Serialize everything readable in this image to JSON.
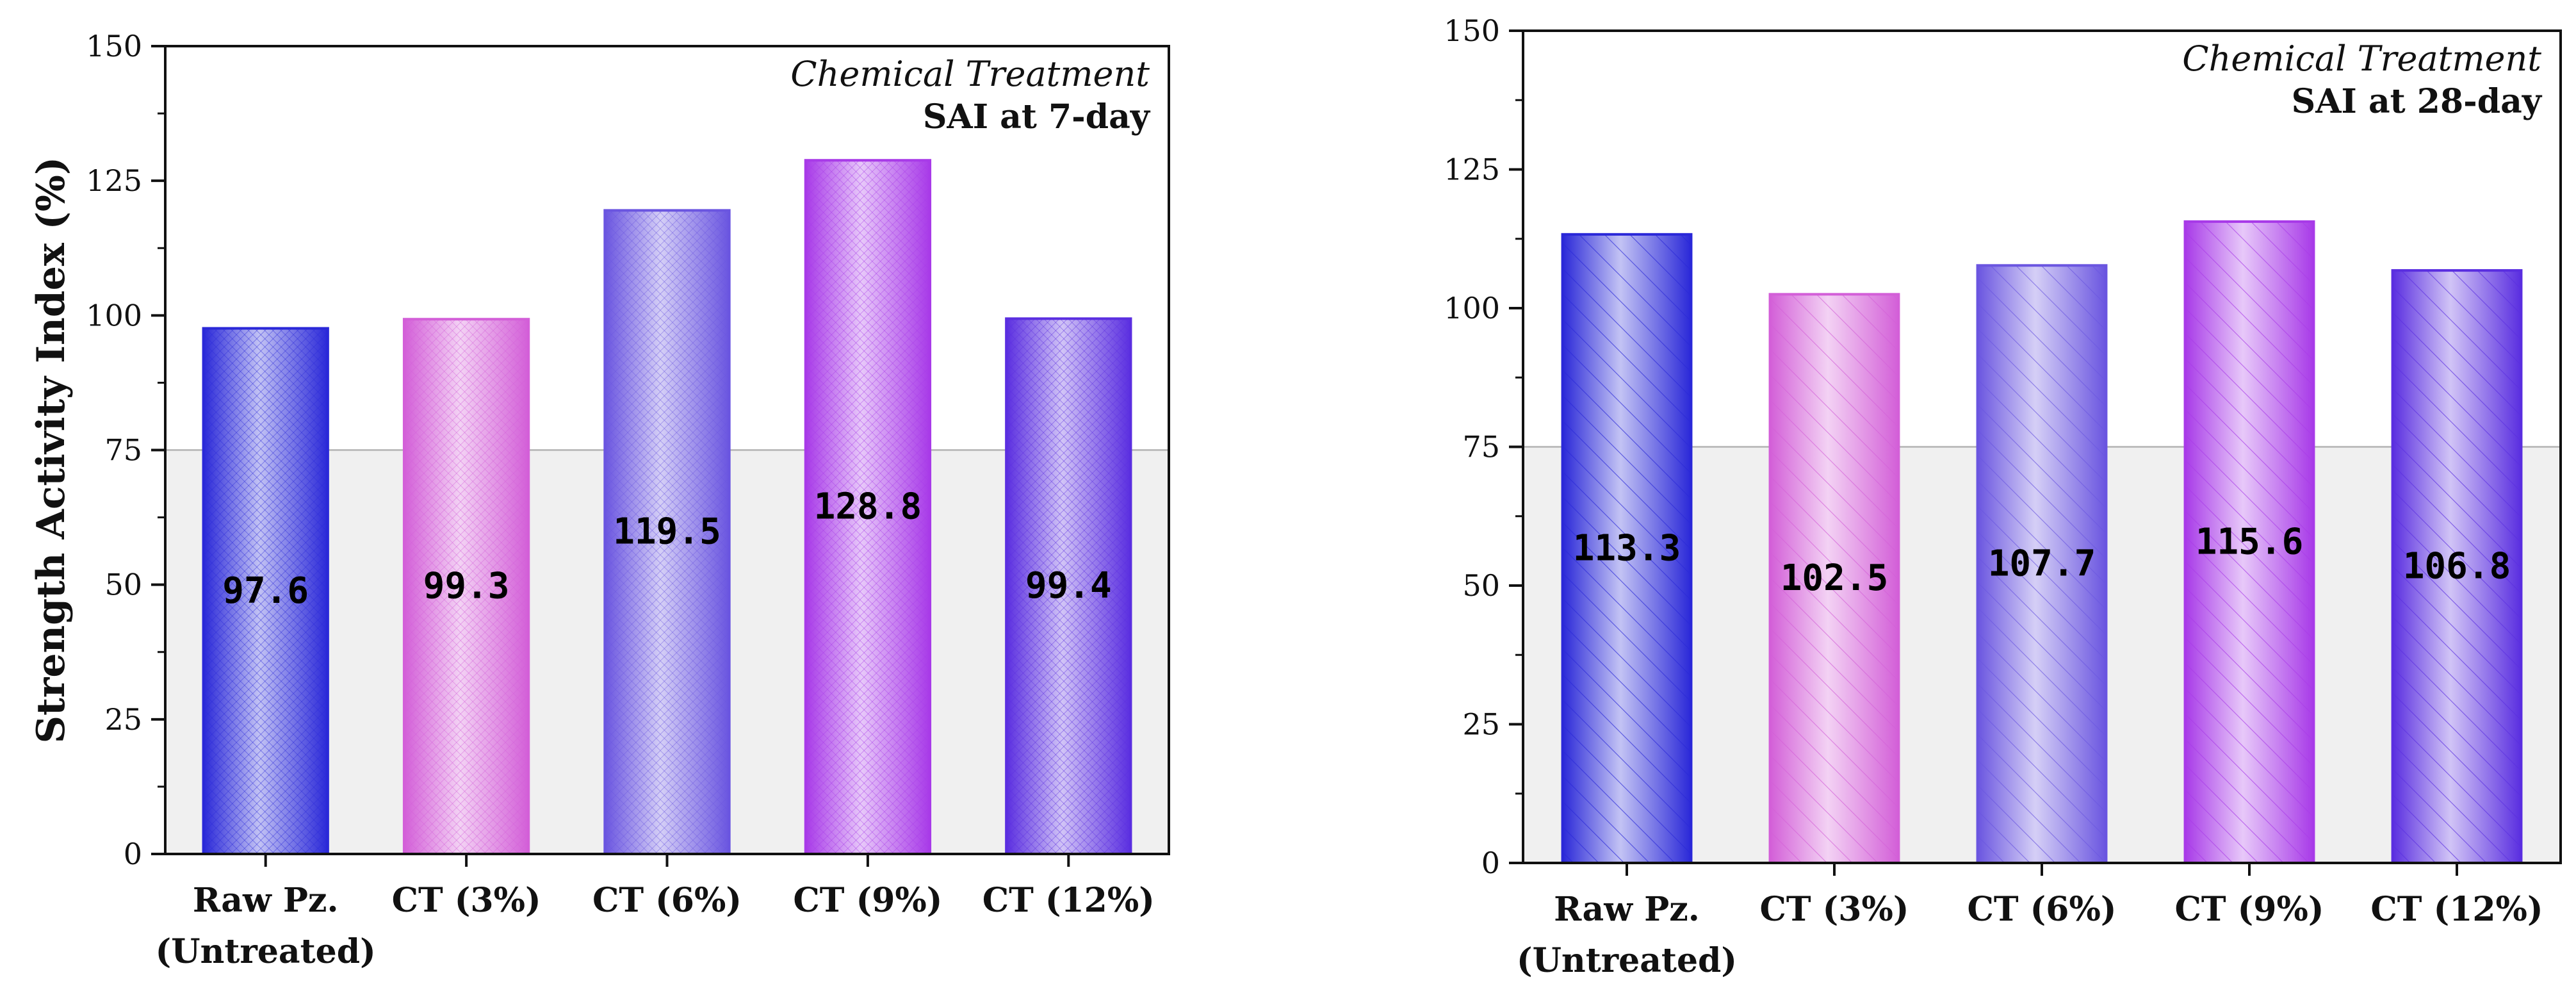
{
  "chart_data": [
    {
      "type": "bar",
      "title": "Chemical Treatment",
      "subtitle": "SAI at 7-day",
      "xlabel": "",
      "ylabel": "Strength Activity Index (%)",
      "ylim": [
        0,
        150
      ],
      "yticks": [
        0,
        25,
        50,
        75,
        100,
        125,
        150
      ],
      "reference_line": 75,
      "categories": [
        [
          "Raw Pz.",
          "(Untreated)"
        ],
        [
          "CT (3%)"
        ],
        [
          "CT (6%)"
        ],
        [
          "CT (9%)"
        ],
        [
          "CT (12%)"
        ]
      ],
      "values": [
        97.6,
        99.3,
        119.5,
        128.8,
        99.4
      ],
      "value_labels": [
        "97.6",
        "99.3",
        "119.5",
        "128.8",
        "99.4"
      ],
      "colors": [
        "#2a28d8",
        "#d35fd8",
        "#6a55e0",
        "#a83ae8",
        "#5a2ee0"
      ],
      "pattern": "crosshatch"
    },
    {
      "type": "bar",
      "title": "Chemical Treatment",
      "subtitle": "SAI at 28-day",
      "xlabel": "",
      "ylabel": "",
      "ylim": [
        0,
        150
      ],
      "yticks": [
        0,
        25,
        50,
        75,
        100,
        125,
        150
      ],
      "reference_line": 75,
      "categories": [
        [
          "Raw Pz.",
          "(Untreated)"
        ],
        [
          "CT (3%)"
        ],
        [
          "CT (6%)"
        ],
        [
          "CT (9%)"
        ],
        [
          "CT (12%)"
        ]
      ],
      "values": [
        113.3,
        102.5,
        107.7,
        115.6,
        106.8
      ],
      "value_labels": [
        "113.3",
        "102.5",
        "107.7",
        "115.6",
        "106.8"
      ],
      "colors": [
        "#2a28d8",
        "#d35fd8",
        "#6a55e0",
        "#a83ae8",
        "#5a2ee0"
      ],
      "pattern": "diagonal"
    }
  ]
}
